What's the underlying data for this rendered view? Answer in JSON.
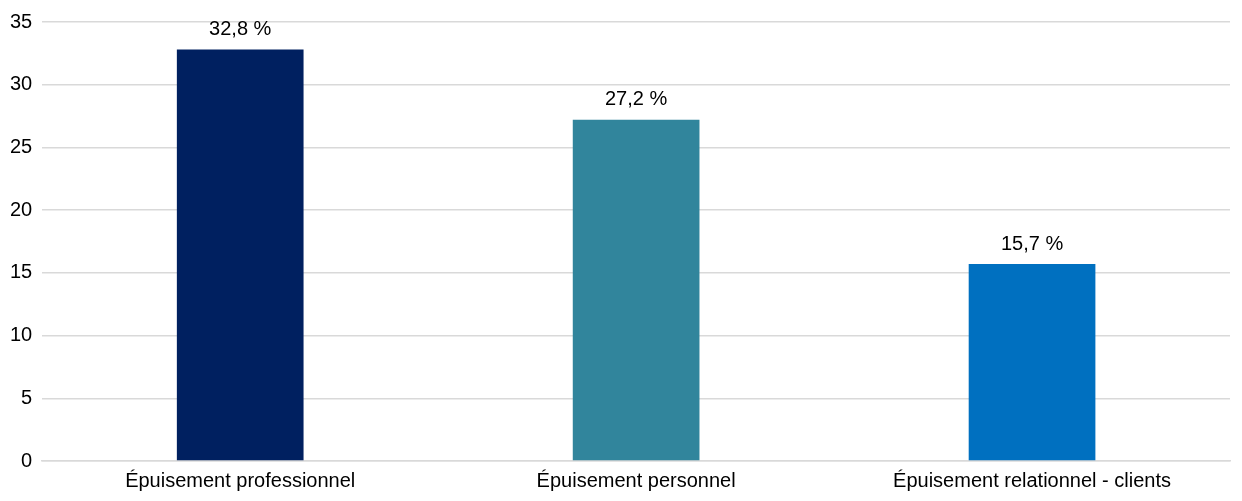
{
  "chart_data": {
    "type": "bar",
    "categories": [
      "Épuisement professionnel",
      "Épuisement personnel",
      "Épuisement relationnel - clients"
    ],
    "values": [
      32.8,
      27.2,
      15.7
    ],
    "colors": [
      "#002060",
      "#31859c",
      "#0070c0"
    ],
    "value_labels": [
      "32,8 %",
      "27,2 %",
      "15,7 %"
    ],
    "ylim": [
      0,
      35
    ],
    "yticks": [
      0,
      5,
      10,
      15,
      20,
      25,
      30,
      35
    ],
    "grid": "y",
    "legend": false
  }
}
